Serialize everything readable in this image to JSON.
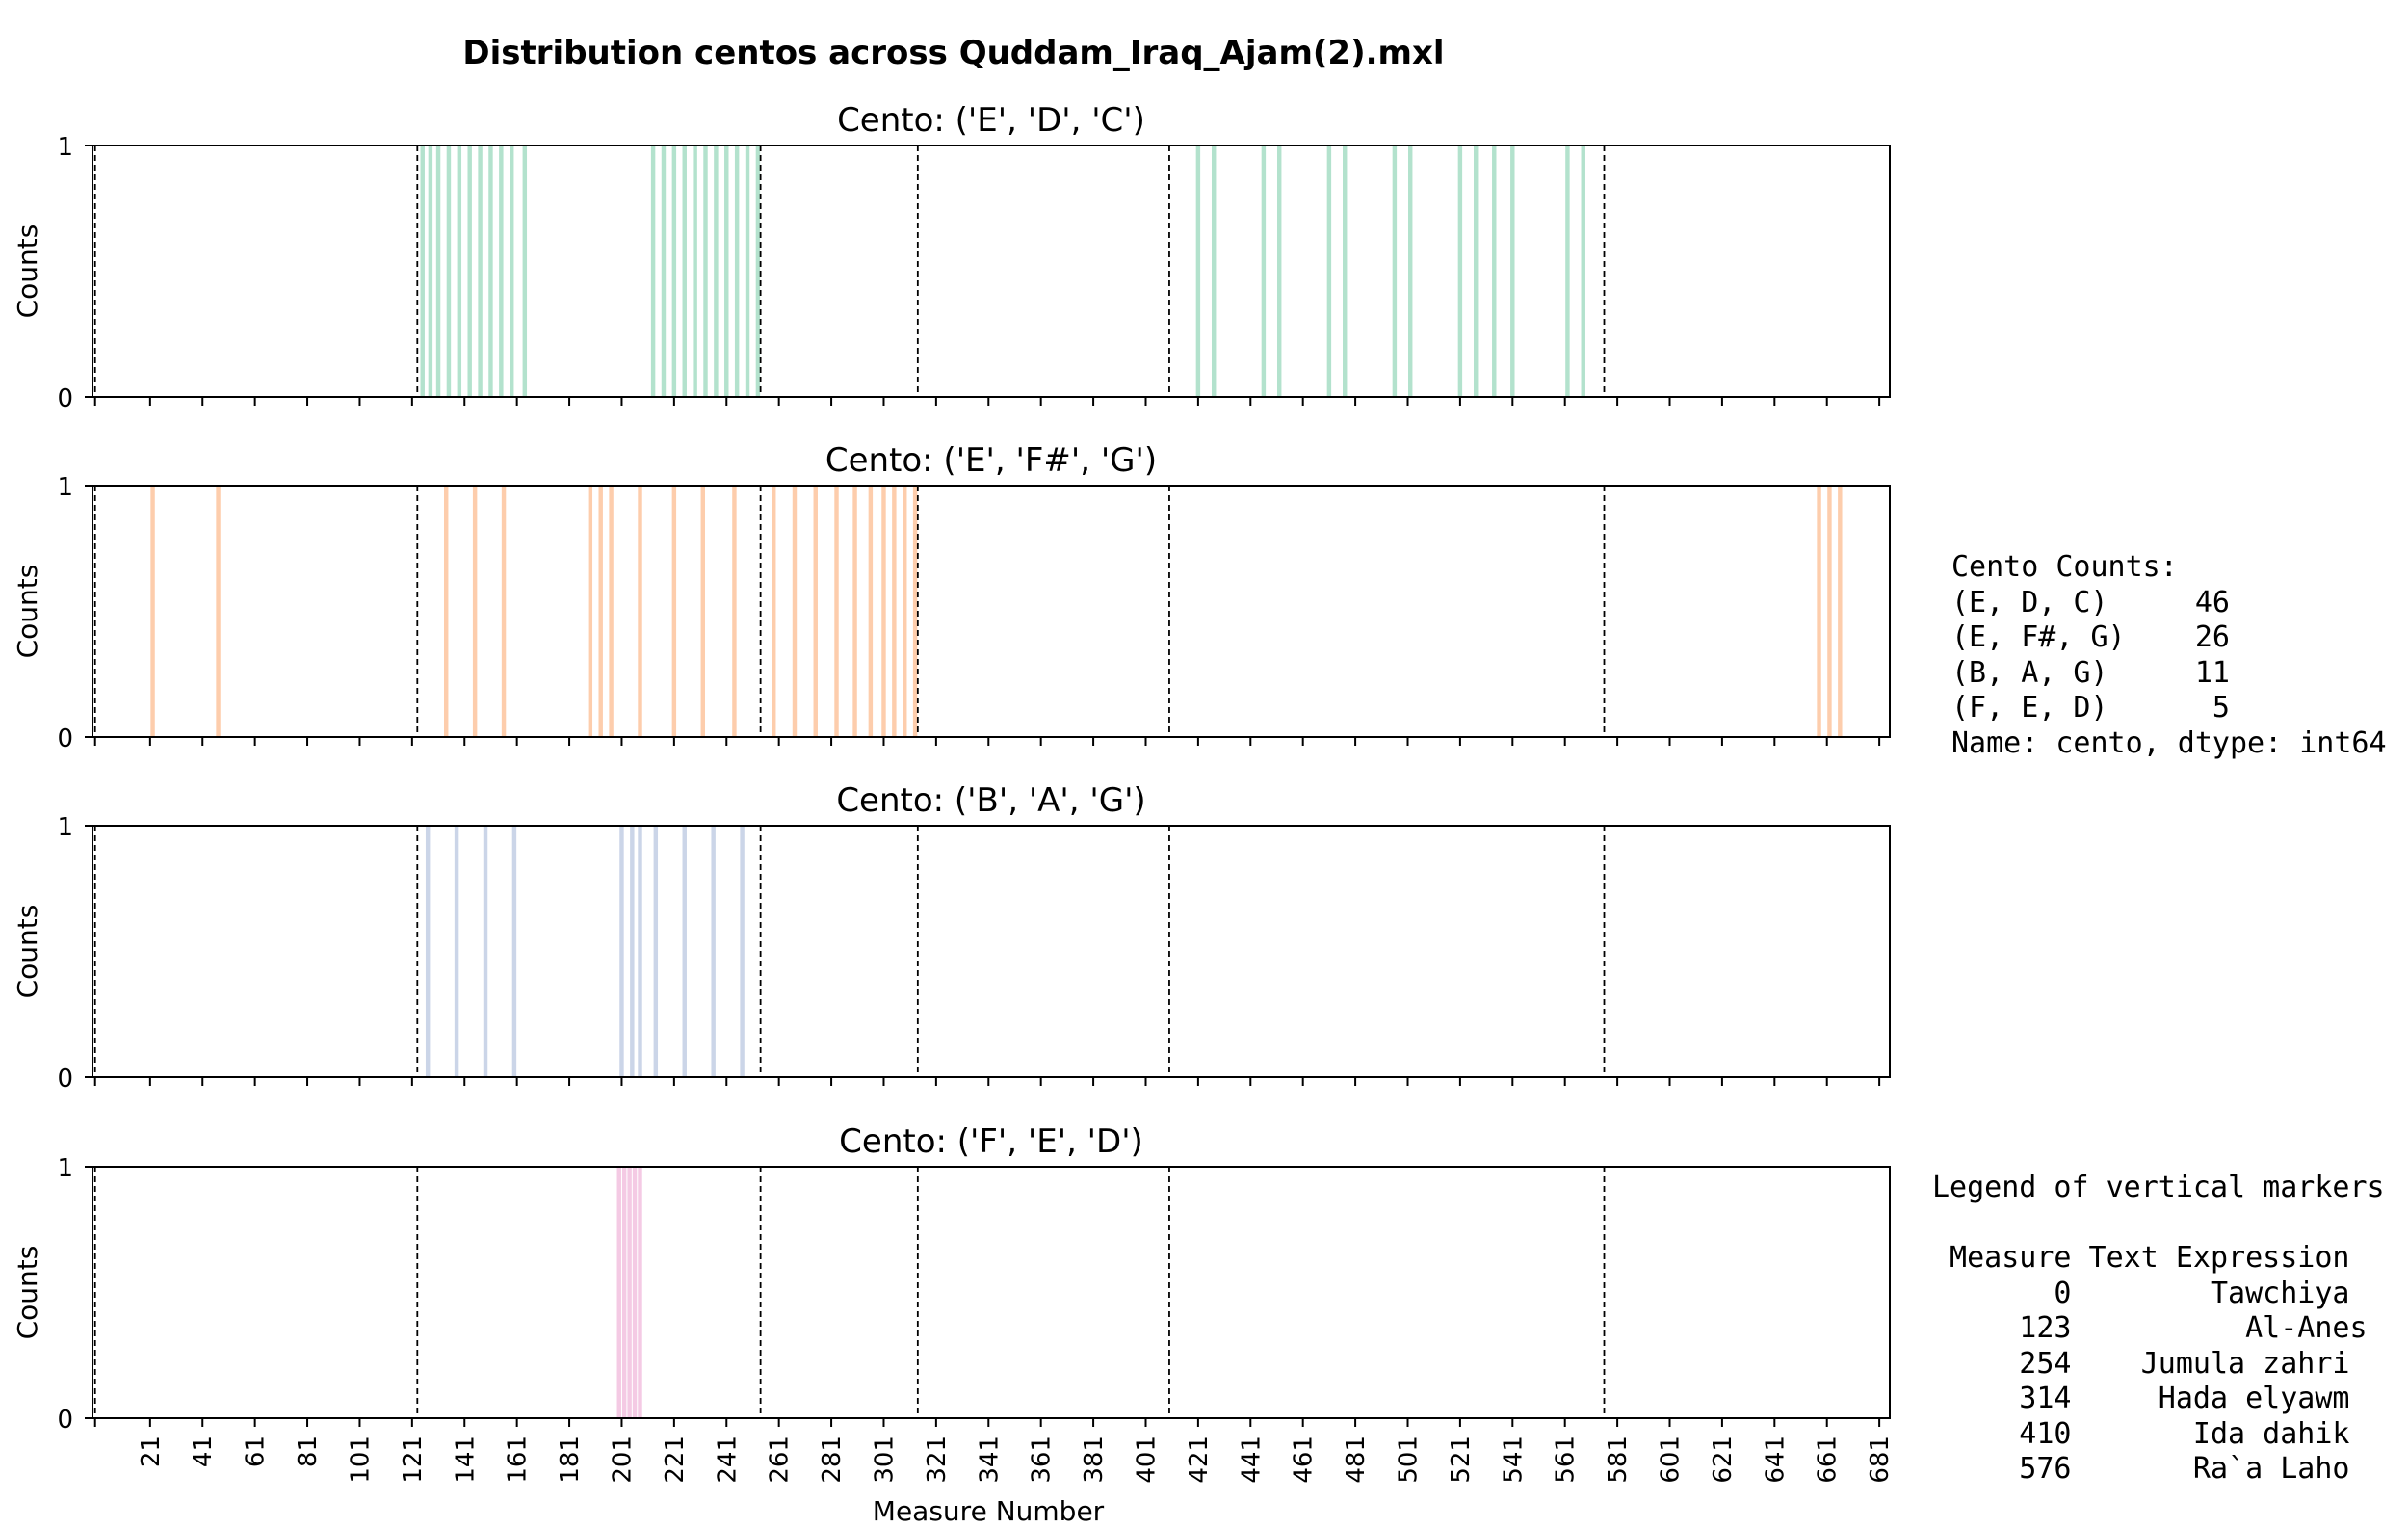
{
  "chart_data": {
    "type": "bar",
    "title": "Distribution centos across Quddam_Iraq_Ajam(2).mxl",
    "xlabel": "Measure Number",
    "ylabel": "Counts",
    "xlim": [
      -1,
      685
    ],
    "ylim": [
      0,
      1
    ],
    "yticks": [
      "0",
      "1"
    ],
    "xticks": [
      "21",
      "41",
      "61",
      "81",
      "101",
      "121",
      "141",
      "161",
      "181",
      "201",
      "221",
      "241",
      "261",
      "281",
      "301",
      "321",
      "341",
      "361",
      "381",
      "401",
      "421",
      "441",
      "461",
      "481",
      "501",
      "521",
      "541",
      "561",
      "581",
      "601",
      "621",
      "641",
      "661",
      "681"
    ],
    "marker_lines": [
      0,
      123,
      254,
      314,
      410,
      576
    ],
    "panels": [
      {
        "title": "Cento: ('E', 'D', 'C')",
        "color": "#b3e2cd",
        "x": [
          125,
          128,
          131,
          135,
          139,
          143,
          147,
          151,
          155,
          159,
          164,
          213,
          217,
          221,
          225,
          229,
          233,
          237,
          241,
          245,
          249,
          253,
          421,
          427,
          446,
          452,
          471,
          477,
          496,
          502,
          521,
          527,
          534,
          541,
          562,
          568
        ],
        "values": [
          1,
          1,
          1,
          1,
          1,
          1,
          1,
          1,
          1,
          1,
          1,
          1,
          1,
          1,
          1,
          1,
          1,
          1,
          1,
          1,
          1,
          1,
          1,
          1,
          1,
          1,
          1,
          1,
          1,
          1,
          1,
          1,
          1,
          1,
          1,
          1
        ]
      },
      {
        "title": "Cento: ('E', 'F#', 'G')",
        "color": "#fdcdac",
        "x": [
          22,
          47,
          134,
          145,
          156,
          189,
          193,
          197,
          208,
          221,
          232,
          244,
          259,
          267,
          275,
          283,
          290,
          296,
          301,
          305,
          309,
          313,
          658,
          662,
          666
        ],
        "values": [
          1,
          1,
          1,
          1,
          1,
          1,
          1,
          1,
          1,
          1,
          1,
          1,
          1,
          1,
          1,
          1,
          1,
          1,
          1,
          1,
          1,
          1,
          1,
          1,
          1
        ]
      },
      {
        "title": "Cento: ('B', 'A', 'G')",
        "color": "#cbd5e8",
        "x": [
          127,
          138,
          149,
          160,
          201,
          205,
          208,
          214,
          225,
          236,
          247
        ],
        "values": [
          1,
          1,
          1,
          1,
          1,
          1,
          1,
          1,
          1,
          1,
          1
        ]
      },
      {
        "title": "Cento: ('F', 'E', 'D')",
        "color": "#f4cae4",
        "x": [
          200,
          202,
          204,
          206,
          208
        ],
        "values": [
          1,
          1,
          1,
          1,
          1
        ]
      }
    ]
  },
  "counts_box": {
    "lines": [
      "Cento Counts:",
      "(E, D, C)     46",
      "(E, F#, G)    26",
      "(B, A, G)     11",
      "(F, E, D)      5",
      "Name: cento, dtype: int64"
    ]
  },
  "legend_box": {
    "lines": [
      "Legend of vertical markers",
      "",
      " Measure Text Expression",
      "       0        Tawchiya",
      "     123          Al-Anes",
      "     254    Jumula zahri",
      "     314     Hada elyawm",
      "     410       Ida dahik",
      "     576       Ra`a Laho"
    ]
  }
}
